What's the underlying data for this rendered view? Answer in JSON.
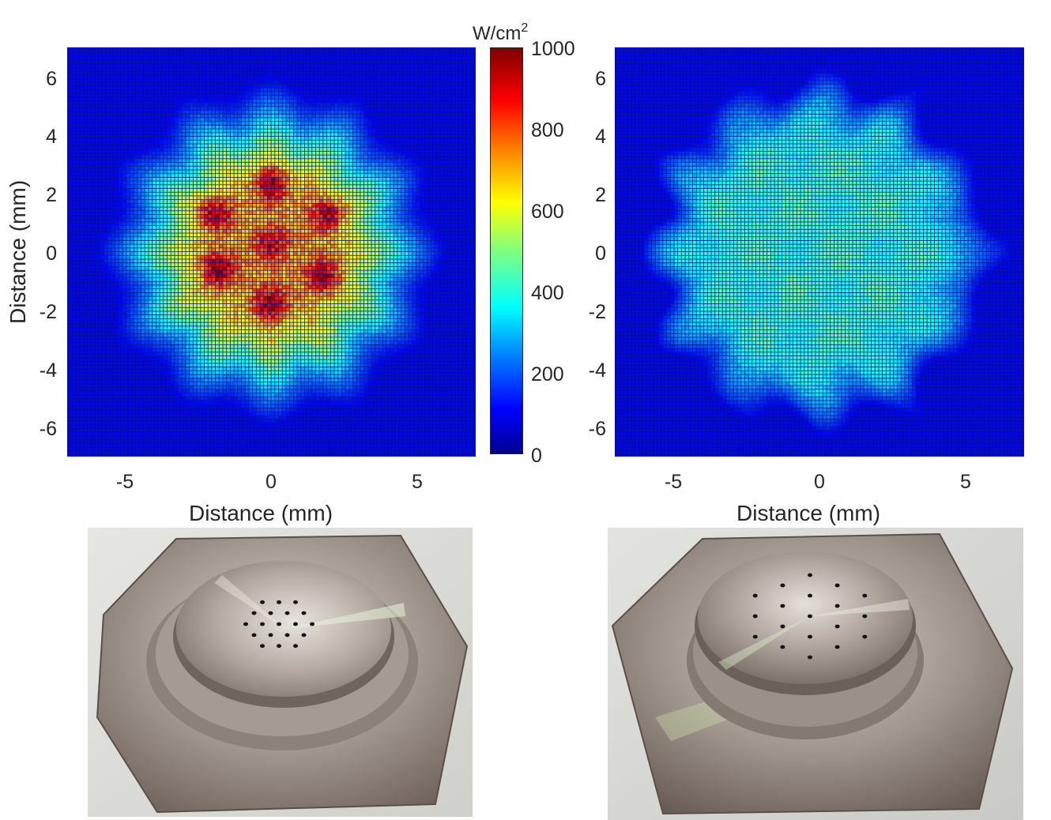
{
  "chart_data": [
    {
      "type": "heatmap",
      "title": "",
      "xlabel": "Distance (mm)",
      "ylabel": "Distance (mm)",
      "xlim": [
        -7,
        7
      ],
      "ylim": [
        -7,
        7
      ],
      "xticks": [
        "-5",
        "0",
        "5"
      ],
      "yticks": [
        "6",
        "4",
        "2",
        "0",
        "-2",
        "-4",
        "-6"
      ],
      "colorbar": {
        "unit": "W/cm",
        "unit_sup": "2",
        "range": [
          0,
          1000
        ],
        "ticks": [
          "1000",
          "800",
          "600",
          "400",
          "200",
          "0"
        ],
        "colormap": "jet"
      },
      "pattern": "concentrated",
      "peak_value": 850,
      "hotspots": [
        {
          "x": 0.0,
          "y": 2.3,
          "value": 850
        },
        {
          "x": -1.9,
          "y": 1.3,
          "value": 820
        },
        {
          "x": 1.9,
          "y": 1.3,
          "value": 800
        },
        {
          "x": 0.0,
          "y": 0.3,
          "value": 760
        },
        {
          "x": -1.8,
          "y": -0.6,
          "value": 830
        },
        {
          "x": 1.8,
          "y": -0.8,
          "value": 820
        },
        {
          "x": 0.0,
          "y": -1.8,
          "value": 840
        }
      ]
    },
    {
      "type": "heatmap",
      "title": "",
      "xlabel": "Distance (mm)",
      "ylabel": "",
      "xlim": [
        -7,
        7
      ],
      "ylim": [
        -7,
        7
      ],
      "xticks": [
        "-5",
        "0",
        "5"
      ],
      "yticks": [
        "6",
        "4",
        "2",
        "0",
        "-2",
        "-4",
        "-6"
      ],
      "pattern": "uniform",
      "peak_value": 420
    }
  ],
  "photos": [
    {
      "name": "nozzle-plate-concentrated",
      "holes": 19
    },
    {
      "name": "nozzle-plate-uniform",
      "holes": 19
    }
  ],
  "colors": {
    "low": "#00008f",
    "high": "#800000"
  }
}
